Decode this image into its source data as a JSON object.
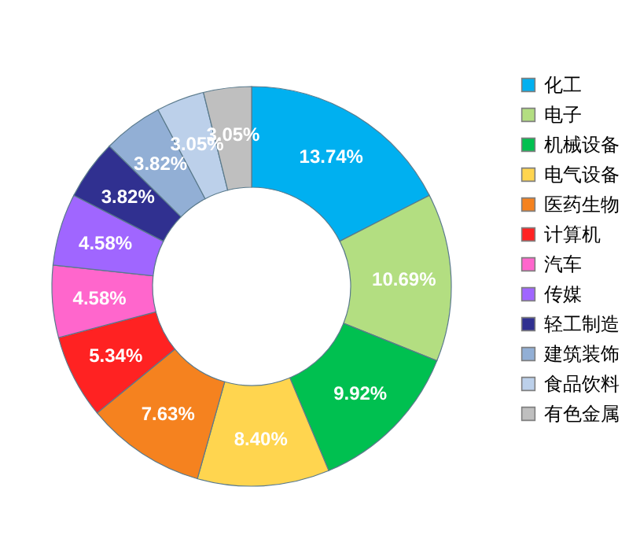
{
  "chart_data": {
    "type": "donut",
    "categories": [
      "化工",
      "电子",
      "机械设备",
      "电气设备",
      "医药生物",
      "计算机",
      "汽车",
      "传媒",
      "轻工制造",
      "建筑装饰",
      "食品饮料",
      "有色金属"
    ],
    "values": [
      13.74,
      10.69,
      9.92,
      8.4,
      7.63,
      5.34,
      4.58,
      4.58,
      3.82,
      3.82,
      3.05,
      3.05
    ],
    "value_labels": [
      "13.74%",
      "10.69%",
      "9.92%",
      "8.40%",
      "7.63%",
      "5.34%",
      "4.58%",
      "4.58%",
      "3.82%",
      "3.82%",
      "3.05%",
      "3.05%"
    ],
    "colors": [
      "#00b0f0",
      "#b3de81",
      "#00c050",
      "#ffd54f",
      "#f5821f",
      "#ff2222",
      "#ff66cc",
      "#a066ff",
      "#303090",
      "#92afd5",
      "#bcd0ea",
      "#bfbfbf"
    ],
    "legend": "right"
  }
}
